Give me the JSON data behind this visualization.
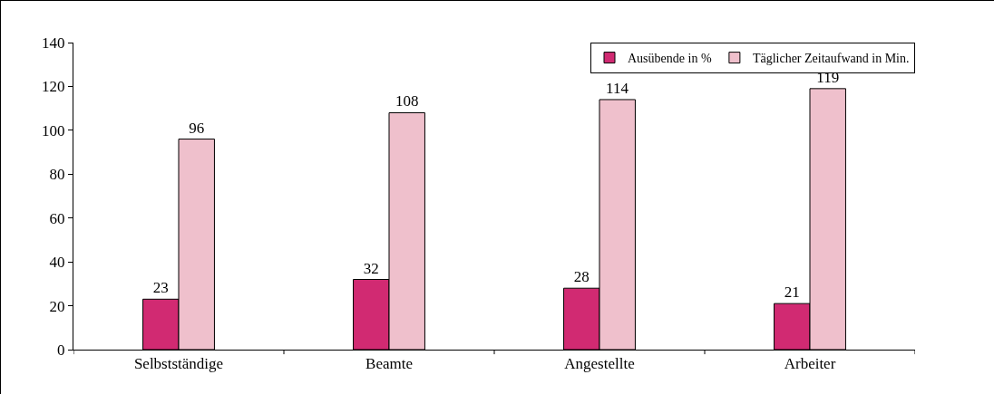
{
  "chart_data": {
    "type": "bar",
    "categories": [
      "Selbstständige",
      "Beamte",
      "Angestellte",
      "Arbeiter"
    ],
    "series": [
      {
        "name": "Ausübende in %",
        "color": "#d12a72",
        "values": [
          23,
          32,
          28,
          21
        ]
      },
      {
        "name": "Täglicher Zeitaufwand in Min.",
        "color": "#efc0cc",
        "values": [
          96,
          108,
          114,
          119
        ]
      }
    ],
    "ylim": [
      0,
      140
    ],
    "yticks": [
      0,
      20,
      40,
      60,
      80,
      100,
      120,
      140
    ],
    "data_labels": true,
    "grid": false,
    "legend": "top right"
  }
}
